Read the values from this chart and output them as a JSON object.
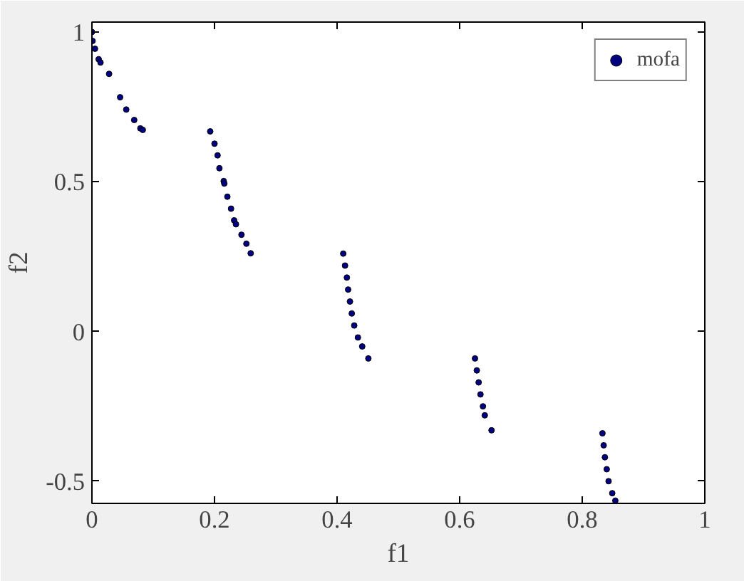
{
  "chart_data": {
    "type": "scatter",
    "xlabel": "f1",
    "ylabel": "f2",
    "xlim": [
      0,
      1
    ],
    "ylim": [
      -0.574,
      1.033
    ],
    "xticks": [
      0,
      0.2,
      0.4,
      0.6,
      0.8,
      1
    ],
    "yticks": [
      -0.5,
      0,
      0.5,
      1
    ],
    "grid": false,
    "legend": "top right",
    "marker": "circle",
    "series": [
      {
        "name": "mofa",
        "color": "#000080",
        "x": [
          0,
          0.001,
          0.005,
          0.011,
          0.014,
          0.028,
          0.046,
          0.056,
          0.069,
          0.079,
          0.083,
          0.193,
          0.2,
          0.205,
          0.208,
          0.215,
          0.216,
          0.221,
          0.227,
          0.232,
          0.235,
          0.244,
          0.252,
          0.259,
          0.41,
          0.413,
          0.416,
          0.418,
          0.421,
          0.424,
          0.428,
          0.434,
          0.441,
          0.451,
          0.625,
          0.628,
          0.631,
          0.634,
          0.638,
          0.641,
          0.652,
          0.833,
          0.835,
          0.837,
          0.84,
          0.843,
          0.849,
          0.854
        ],
        "values": [
          1.0,
          0.97,
          0.944,
          0.909,
          0.898,
          0.86,
          0.782,
          0.741,
          0.706,
          0.678,
          0.673,
          0.668,
          0.627,
          0.588,
          0.545,
          0.502,
          0.494,
          0.45,
          0.41,
          0.371,
          0.358,
          0.323,
          0.293,
          0.261,
          0.26,
          0.22,
          0.18,
          0.14,
          0.1,
          0.06,
          0.02,
          -0.02,
          -0.05,
          -0.09,
          -0.09,
          -0.13,
          -0.17,
          -0.21,
          -0.25,
          -0.28,
          -0.33,
          -0.34,
          -0.38,
          -0.42,
          -0.46,
          -0.5,
          -0.54,
          -0.565
        ]
      }
    ]
  }
}
